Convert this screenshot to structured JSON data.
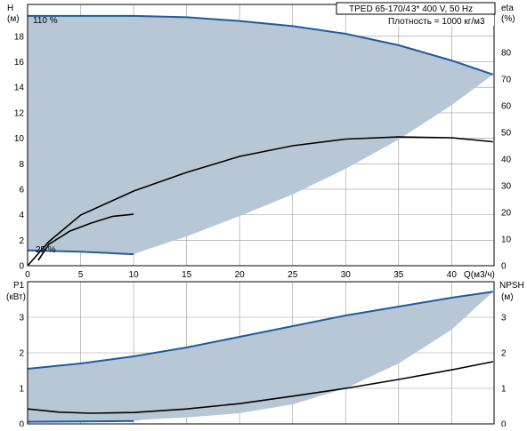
{
  "chart_data": [
    {
      "type": "line",
      "panel": "head-efficiency",
      "header": {
        "model": "TPED 65-170/4",
        "supply": "3* 400 V, 50 Hz",
        "density": "Плотность = 1000 кг/м3"
      },
      "y_left_label": "H",
      "y_left_unit": "(м)",
      "y_right_label": "eta",
      "y_right_unit": "(%)",
      "xlabel": "Q(м3/ч)",
      "xlim": [
        0,
        44
      ],
      "ylim_left": [
        0,
        20.5
      ],
      "ylim_right": [
        0,
        98
      ],
      "x_ticks": [
        0,
        5,
        10,
        15,
        20,
        25,
        30,
        35,
        40
      ],
      "y_left_ticks": [
        0,
        2,
        4,
        6,
        8,
        10,
        12,
        14,
        16,
        18
      ],
      "y_right_ticks": [
        0,
        10,
        20,
        30,
        40,
        50,
        60,
        70,
        80
      ],
      "grid": true,
      "annotations": [
        "110 %",
        "25 %"
      ],
      "series": [
        {
          "role": "head-max",
          "axis": "left",
          "color": "#1f5c9c",
          "x": [
            0,
            5,
            10,
            15,
            20,
            25,
            30,
            35,
            40,
            43.9
          ],
          "y": [
            19.6,
            19.6,
            19.6,
            19.5,
            19.2,
            18.8,
            18.2,
            17.3,
            16.1,
            15.0
          ]
        },
        {
          "role": "head-min",
          "axis": "left",
          "color": "#1f5c9c",
          "x": [
            0,
            5,
            10
          ],
          "y": [
            1.2,
            1.1,
            0.9
          ]
        },
        {
          "role": "efficiency-max",
          "axis": "right",
          "color": "#000000",
          "x": [
            0,
            2,
            5,
            10,
            15,
            20,
            25,
            30,
            35,
            40,
            43.9
          ],
          "y": [
            0,
            9,
            19,
            28,
            35,
            41,
            45,
            47.5,
            48.3,
            48,
            46.5
          ]
        },
        {
          "role": "efficiency-min",
          "axis": "right",
          "color": "#000000",
          "x": [
            1,
            2,
            4,
            6,
            8,
            10
          ],
          "y": [
            2,
            8,
            13,
            16,
            18.5,
            19.3
          ]
        }
      ],
      "envelope": {
        "upper": {
          "x": [
            0,
            5,
            10,
            15,
            20,
            25,
            30,
            35,
            40,
            43.9
          ],
          "y": [
            19.6,
            19.6,
            19.6,
            19.5,
            19.2,
            18.8,
            18.2,
            17.3,
            16.1,
            15.0
          ]
        },
        "lower": {
          "x": [
            43.9,
            40,
            35,
            30,
            25,
            20,
            15,
            11,
            10,
            5,
            0
          ],
          "y": [
            15.0,
            12.6,
            9.9,
            7.6,
            5.6,
            3.9,
            2.3,
            1.2,
            0.9,
            1.1,
            1.2
          ]
        }
      }
    },
    {
      "type": "line",
      "panel": "power-npsh",
      "y_left_label": "P1",
      "y_left_unit": "(кВт)",
      "y_right_label": "NPSH",
      "y_right_unit": "(м)",
      "xlim": [
        0,
        44
      ],
      "ylim_left": [
        0,
        4
      ],
      "ylim_right": [
        0,
        4
      ],
      "y_left_ticks": [
        0,
        1,
        2,
        3
      ],
      "y_right_ticks": [
        0,
        1,
        2,
        3
      ],
      "grid": true,
      "series": [
        {
          "role": "power-max",
          "axis": "left",
          "color": "#1f5c9c",
          "x": [
            0,
            5,
            10,
            15,
            20,
            25,
            30,
            35,
            40,
            43.9
          ],
          "y": [
            1.55,
            1.7,
            1.9,
            2.15,
            2.45,
            2.75,
            3.05,
            3.3,
            3.55,
            3.72
          ]
        },
        {
          "role": "power-min",
          "axis": "left",
          "color": "#1f5c9c",
          "x": [
            0,
            5,
            10
          ],
          "y": [
            0.06,
            0.07,
            0.08
          ]
        },
        {
          "role": "npsh",
          "axis": "right",
          "color": "#000000",
          "x": [
            0,
            3,
            6,
            10,
            15,
            20,
            25,
            30,
            35,
            40,
            43.9
          ],
          "y": [
            0.42,
            0.33,
            0.3,
            0.32,
            0.42,
            0.57,
            0.78,
            1.0,
            1.25,
            1.52,
            1.75
          ]
        }
      ],
      "envelope": {
        "upper": {
          "x": [
            0,
            5,
            10,
            15,
            20,
            25,
            30,
            35,
            40,
            43.9
          ],
          "y": [
            1.55,
            1.7,
            1.9,
            2.15,
            2.45,
            2.75,
            3.05,
            3.3,
            3.55,
            3.72
          ]
        },
        "lower": {
          "x": [
            43.9,
            40,
            35,
            30,
            25,
            20,
            15,
            11,
            10,
            5,
            0
          ],
          "y": [
            3.72,
            2.65,
            1.7,
            1.0,
            0.55,
            0.3,
            0.18,
            0.12,
            0.08,
            0.07,
            0.06
          ]
        }
      }
    }
  ]
}
